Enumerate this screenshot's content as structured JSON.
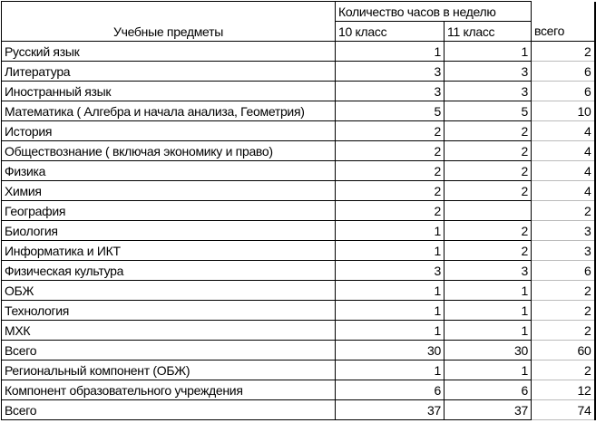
{
  "header": {
    "subjects": "Учебные предметы",
    "hours_per_week": "Количество часов в неделю",
    "grade10": "10 класс",
    "grade11": "11 класс",
    "total": "всего"
  },
  "rows": [
    {
      "subject": "Русский язык",
      "g10": "1",
      "g11": "1",
      "total": "2"
    },
    {
      "subject": "Литература",
      "g10": "3",
      "g11": "3",
      "total": "6"
    },
    {
      "subject": "Иностранный язык",
      "g10": "3",
      "g11": "3",
      "total": "6"
    },
    {
      "subject": "Математика ( Алгебра и начала анализа, Геометрия)",
      "g10": "5",
      "g11": "5",
      "total": "10"
    },
    {
      "subject": "История",
      "g10": "2",
      "g11": "2",
      "total": "4"
    },
    {
      "subject": "Обществознание ( включая экономику и право)",
      "g10": "2",
      "g11": "2",
      "total": "4"
    },
    {
      "subject": "Физика",
      "g10": "2",
      "g11": "2",
      "total": "4"
    },
    {
      "subject": "Химия",
      "g10": "2",
      "g11": "2",
      "total": "4"
    },
    {
      "subject": "География",
      "g10": "2",
      "g11": "",
      "total": "2"
    },
    {
      "subject": "Биология",
      "g10": "1",
      "g11": "2",
      "total": "3"
    },
    {
      "subject": "Информатика и ИКТ",
      "g10": "1",
      "g11": "2",
      "total": "3"
    },
    {
      "subject": "Физическая культура",
      "g10": "3",
      "g11": "3",
      "total": "6"
    },
    {
      "subject": "ОБЖ",
      "g10": "1",
      "g11": "1",
      "total": "2"
    },
    {
      "subject": "Технология",
      "g10": "1",
      "g11": "1",
      "total": "2"
    },
    {
      "subject": "МХК",
      "g10": "1",
      "g11": "1",
      "total": "2"
    },
    {
      "subject": "Всего",
      "g10": "30",
      "g11": "30",
      "total": "60"
    },
    {
      "subject": "Региональный компонент (ОБЖ)",
      "g10": "1",
      "g11": "1",
      "total": "2"
    },
    {
      "subject": "Компонент образовательного учреждения",
      "g10": "6",
      "g11": "6",
      "total": "12"
    },
    {
      "subject": "Всего",
      "g10": "37",
      "g11": "37",
      "total": "74"
    }
  ]
}
